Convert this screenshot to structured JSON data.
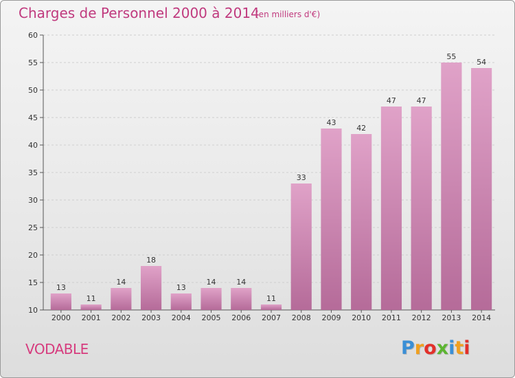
{
  "header": {
    "title": "Charges de Personnel 2000 à 2014",
    "subtitle": "(en milliers d'€)"
  },
  "footer": {
    "commune": "VODABLE",
    "brand_letters": [
      "P",
      "r",
      "o",
      "x",
      "i",
      "t",
      "i"
    ],
    "brand_colors": [
      "#3a8fd6",
      "#f0a020",
      "#e2302a",
      "#5cb531",
      "#3a8fd6",
      "#f0a020",
      "#e2302a"
    ]
  },
  "chart_data": {
    "type": "bar",
    "categories": [
      "2000",
      "2001",
      "2002",
      "2003",
      "2004",
      "2005",
      "2006",
      "2007",
      "2008",
      "2009",
      "2010",
      "2011",
      "2012",
      "2013",
      "2014"
    ],
    "values": [
      13,
      11,
      14,
      18,
      13,
      14,
      14,
      11,
      33,
      43,
      42,
      47,
      47,
      55,
      54
    ],
    "ylim": [
      10,
      60
    ],
    "yticks": [
      10,
      15,
      20,
      25,
      30,
      35,
      40,
      45,
      50,
      55,
      60
    ],
    "grid": true,
    "bar_color": "#e0a2c8",
    "bar_color_dark": "#b56b99"
  }
}
